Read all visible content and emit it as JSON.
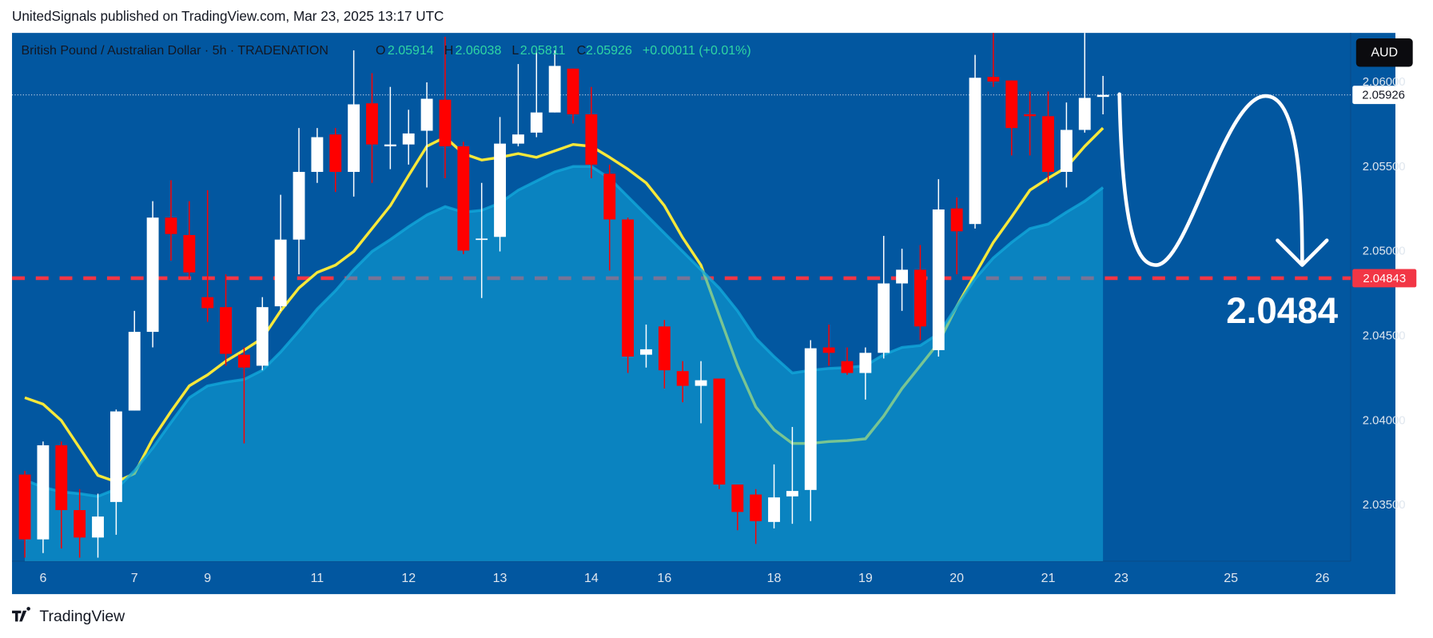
{
  "header": "UnitedSignals published on TradingView.com, Mar 23, 2025 13:17 UTC",
  "footer": "TradingView",
  "chart_data": {
    "type": "candlestick",
    "legend": {
      "symbol": "British Pound / Australian Dollar · 5h · TRADENATION",
      "labels": [
        "O",
        "H",
        "L",
        "C"
      ],
      "change": "+0.00011 (+0.01%)"
    },
    "currency": "AUD",
    "annotation": "2.0484",
    "open": [
      2.03683,
      2.033,
      2.03856,
      2.03473,
      2.03311,
      2.03521,
      2.04061,
      2.04526,
      2.05201,
      2.05098,
      2.04731,
      2.04672,
      2.04391,
      2.04326,
      2.04677,
      2.05071,
      2.05471,
      2.05692,
      2.05471,
      2.05876,
      2.05622,
      2.05633,
      2.05714,
      2.05897,
      2.05622,
      2.05071,
      2.05087,
      2.05638,
      2.05703,
      2.05822,
      2.06081,
      2.05811,
      2.0546,
      2.0519,
      2.04391,
      2.04558,
      2.04294,
      2.04207,
      2.0425,
      2.03624,
      2.03565,
      2.03403,
      2.03554,
      2.03592,
      2.04434,
      2.04353,
      2.04283,
      2.04402,
      2.04812,
      2.04893,
      2.04418,
      2.05255,
      2.05163,
      2.06032,
      2.06011,
      2.05811,
      2.058,
      2.05471,
      2.05719,
      2.05914
    ],
    "high": [
      2.03705,
      2.03878,
      2.03878,
      2.03597,
      2.0357,
      2.04067,
      2.0465,
      2.05298,
      2.05422,
      2.05298,
      2.05363,
      2.04866,
      2.04434,
      2.04731,
      2.05336,
      2.0573,
      2.0573,
      2.0573,
      2.06189,
      2.06054,
      2.05973,
      2.05838,
      2.06,
      2.0627,
      2.05649,
      2.05406,
      2.05795,
      2.06108,
      2.06189,
      2.06189,
      2.06081,
      2.05973,
      2.05514,
      2.05201,
      2.04569,
      2.04596,
      2.04353,
      2.04353,
      2.0425,
      2.03624,
      2.03597,
      2.03743,
      2.03964,
      2.04477,
      2.04569,
      2.04434,
      2.04434,
      2.05093,
      2.05017,
      2.05039,
      2.05428,
      2.0532,
      2.06162,
      2.06292,
      2.06011,
      2.05946,
      2.05946,
      2.05881,
      2.06292,
      2.06038
    ],
    "low": [
      2.03192,
      2.03219,
      2.03246,
      2.03192,
      2.03192,
      2.03327,
      2.04061,
      2.04434,
      2.04947,
      2.04839,
      2.04585,
      2.04326,
      2.03867,
      2.04299,
      2.0465,
      2.04866,
      2.05406,
      2.05352,
      2.05325,
      2.05406,
      2.05487,
      2.05514,
      2.05379,
      2.05433,
      2.04985,
      2.04726,
      2.05001,
      2.05622,
      2.05676,
      2.05822,
      2.05757,
      2.05433,
      2.04888,
      2.04283,
      2.04315,
      2.04191,
      2.0411,
      2.03986,
      2.03597,
      2.03354,
      2.03273,
      2.03365,
      2.03392,
      2.03408,
      2.04326,
      2.04272,
      2.04126,
      2.04369,
      2.0465,
      2.04477,
      2.0438,
      2.04866,
      2.05136,
      2.05973,
      2.05568,
      2.05568,
      2.05406,
      2.05379,
      2.05703,
      2.05811
    ],
    "close": [
      2.033,
      2.03856,
      2.03473,
      2.03311,
      2.03435,
      2.04056,
      2.04526,
      2.05201,
      2.05104,
      2.04877,
      2.04666,
      2.04396,
      2.04315,
      2.04672,
      2.05071,
      2.05471,
      2.05676,
      2.05471,
      2.0587,
      2.05633,
      2.05633,
      2.05698,
      2.05903,
      2.05622,
      2.05006,
      2.05077,
      2.05638,
      2.05692,
      2.05822,
      2.06097,
      2.05811,
      2.05514,
      2.0519,
      2.0438,
      2.04423,
      2.04299,
      2.04207,
      2.0424,
      2.03624,
      2.03462,
      2.03408,
      2.03548,
      2.03586,
      2.04429,
      2.04402,
      2.04283,
      2.04402,
      2.04812,
      2.04893,
      2.04558,
      2.05249,
      2.0512,
      2.06027,
      2.06005,
      2.0573,
      2.058,
      2.05471,
      2.05719,
      2.05908,
      2.05926
    ],
    "up_color": "#ffffff",
    "down_color": "#ff0000",
    "fast_line": {
      "color": "#f7e83a",
      "values": [
        2.04137,
        2.04099,
        2.04002,
        2.0384,
        2.03678,
        2.0364,
        2.03689,
        2.03894,
        2.04056,
        2.04207,
        2.04272,
        2.04353,
        2.04418,
        2.04488,
        2.0465,
        2.04785,
        2.04877,
        2.0492,
        2.05001,
        2.05136,
        2.05271,
        2.05449,
        2.05622,
        2.05676,
        2.05579,
        2.05541,
        2.05557,
        2.05579,
        2.05557,
        2.05595,
        2.05633,
        2.05622,
        2.05557,
        2.05487,
        2.05406,
        2.05271,
        2.05082,
        2.0492,
        2.04623,
        2.04326,
        2.04083,
        2.03948,
        2.03867,
        2.03867,
        2.03878,
        2.03883,
        2.03894,
        2.04029,
        2.04191,
        2.04326,
        2.04461,
        2.04677,
        2.04866,
        2.05055,
        2.05206,
        2.05363,
        2.05433,
        2.05498,
        2.05622,
        2.0573
      ]
    },
    "slow_area": {
      "color": "#12a8da",
      "values": [
        2.03651,
        2.03608,
        2.03581,
        2.0357,
        2.03554,
        2.03597,
        2.03705,
        2.0384,
        2.03991,
        2.04137,
        2.04207,
        2.04229,
        2.04245,
        2.04299,
        2.04407,
        2.04531,
        2.04661,
        2.04769,
        2.04893,
        2.05001,
        2.05071,
        2.05147,
        2.05217,
        2.05266,
        2.05233,
        2.05244,
        2.05287,
        2.05363,
        2.05417,
        2.05471,
        2.05503,
        2.05503,
        2.05433,
        2.05325,
        2.05217,
        2.05109,
        2.05001,
        2.04893,
        2.04785,
        2.0465,
        2.04488,
        2.0438,
        2.04283,
        2.04299,
        2.0431,
        2.04315,
        2.04326,
        2.04391,
        2.04434,
        2.04445,
        2.04515,
        2.04677,
        2.04839,
        2.04963,
        2.05055,
        2.05136,
        2.05163,
        2.05233,
        2.05298,
        2.05379
      ]
    },
    "level": 2.04843,
    "level_color": "#f23645",
    "last_price": 2.05926,
    "xlim": [
      -0.7,
      72.55
    ],
    "xticks": [
      {
        "value": 1,
        "label": "6"
      },
      {
        "value": 6,
        "label": "7"
      },
      {
        "value": 10,
        "label": "9"
      },
      {
        "value": 16,
        "label": "11"
      },
      {
        "value": 21,
        "label": "12"
      },
      {
        "value": 26,
        "label": "13"
      },
      {
        "value": 31,
        "label": "14"
      },
      {
        "value": 35,
        "label": "16"
      },
      {
        "value": 41,
        "label": "18"
      },
      {
        "value": 46,
        "label": "19"
      },
      {
        "value": 51,
        "label": "20"
      },
      {
        "value": 56,
        "label": "21"
      },
      {
        "value": 60,
        "label": "23"
      },
      {
        "value": 66,
        "label": "25"
      },
      {
        "value": 71,
        "label": "26"
      }
    ],
    "ylim": [
      2.03171,
      2.06292
    ],
    "yticks": [
      {
        "value": 2.035,
        "label": "2.03500"
      },
      {
        "value": 2.04,
        "label": "2.04000"
      },
      {
        "value": 2.045,
        "label": "2.04500"
      },
      {
        "value": 2.05,
        "label": "2.05000"
      },
      {
        "value": 2.055,
        "label": "2.05500"
      },
      {
        "value": 2.06,
        "label": "2.06000"
      }
    ],
    "grid": false
  }
}
